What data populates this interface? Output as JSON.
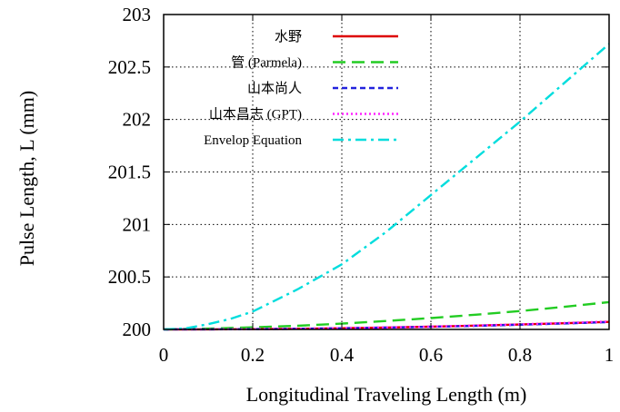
{
  "chart_data": {
    "type": "line",
    "xlabel": "Longitudinal Traveling Length (m)",
    "ylabel": "Pulse Length, L (mm)",
    "xlim": [
      0,
      1
    ],
    "ylim": [
      200,
      203
    ],
    "xticks": [
      "0",
      "0.2",
      "0.4",
      "0.6",
      "0.8",
      "1"
    ],
    "yticks": [
      "200",
      "200.5",
      "201",
      "201.5",
      "202",
      "202.5",
      "203"
    ],
    "grid": true,
    "legend_position": "top-left",
    "series": [
      {
        "name": "水野",
        "color": "#dd0000",
        "dash": "solid",
        "x": [
          0,
          0.1,
          0.2,
          0.3,
          0.4,
          0.5,
          0.6,
          0.7,
          0.8,
          0.9,
          1.0
        ],
        "y": [
          200.0,
          200.001,
          200.003,
          200.006,
          200.011,
          200.018,
          200.026,
          200.036,
          200.047,
          200.059,
          200.072
        ]
      },
      {
        "name": "管 (Parmela)",
        "color": "#22cc22",
        "dash": "long-dash",
        "x": [
          0,
          0.1,
          0.2,
          0.3,
          0.4,
          0.5,
          0.6,
          0.7,
          0.8,
          0.9,
          1.0
        ],
        "y": [
          200.0,
          200.008,
          200.02,
          200.035,
          200.055,
          200.08,
          200.108,
          200.14,
          200.175,
          200.215,
          200.26
        ]
      },
      {
        "name": "山本尚人",
        "color": "#2222dd",
        "dash": "short-dash",
        "x": [
          0,
          0.1,
          0.2,
          0.3,
          0.4,
          0.5,
          0.6,
          0.7,
          0.8,
          0.9,
          1.0
        ],
        "y": [
          200.0,
          200.001,
          200.003,
          200.006,
          200.011,
          200.017,
          200.025,
          200.034,
          200.045,
          200.057,
          200.07
        ]
      },
      {
        "name": "山本昌志 (GPT)",
        "color": "#ff22ff",
        "dash": "dotted",
        "x": [
          0,
          0.1,
          0.2,
          0.3,
          0.4,
          0.5,
          0.6,
          0.7,
          0.8,
          0.9,
          1.0
        ],
        "y": [
          200.0,
          200.001,
          200.003,
          200.007,
          200.012,
          200.019,
          200.027,
          200.037,
          200.048,
          200.061,
          200.075
        ]
      },
      {
        "name": "Envelop Equation",
        "color": "#00dddd",
        "dash": "dash-dot",
        "x": [
          0,
          0.05,
          0.1,
          0.15,
          0.2,
          0.3,
          0.4,
          0.5,
          0.6,
          0.7,
          0.8,
          0.9,
          1.0
        ],
        "y": [
          200.0,
          200.01,
          200.05,
          200.1,
          200.17,
          200.38,
          200.62,
          200.93,
          201.28,
          201.63,
          201.98,
          202.35,
          202.72
        ]
      }
    ]
  }
}
